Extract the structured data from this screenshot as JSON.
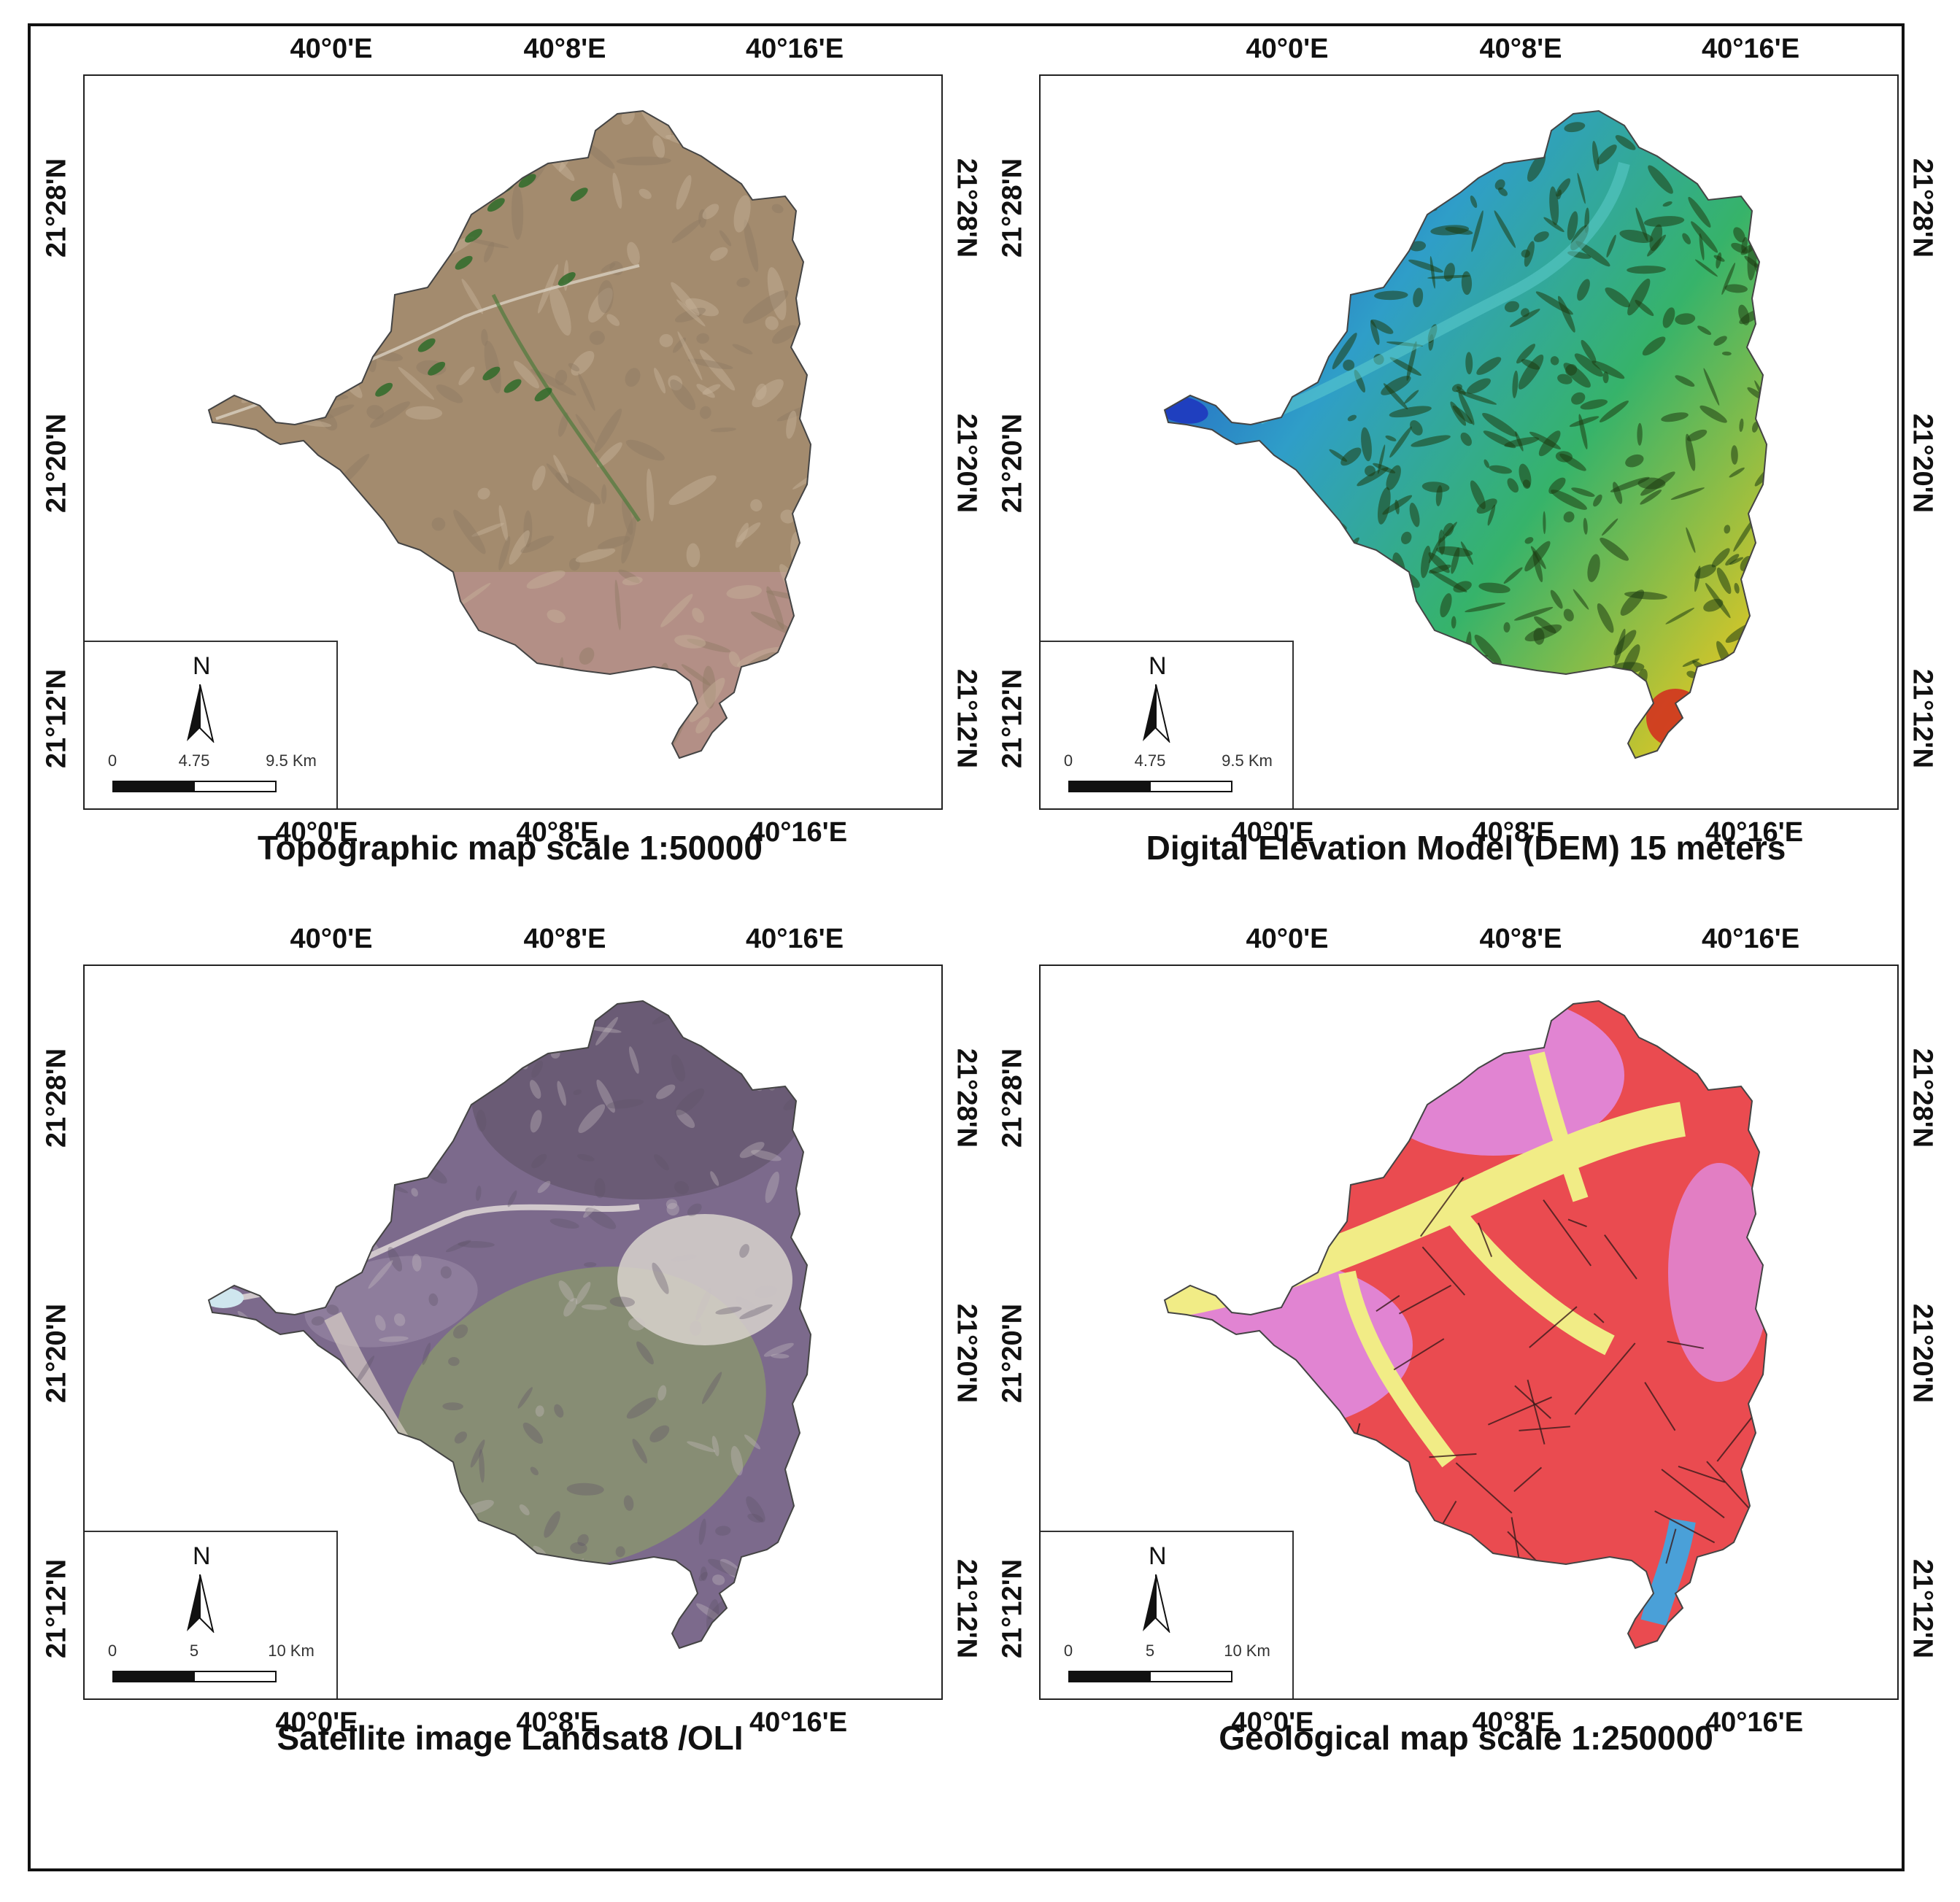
{
  "panels": [
    {
      "id": "topo",
      "caption": "Topographic map scale 1:50000",
      "lon_ticks": [
        "40°0'E",
        "40°8'E",
        "40°16'E"
      ],
      "lat_ticks": [
        "21°28'N",
        "21°20'N",
        "21°12'N"
      ],
      "north": "N",
      "scale": {
        "l0": "0",
        "l1": "4.75",
        "l2": "9.5 Km"
      },
      "colors": [
        "#a38b6e",
        "#b9a080",
        "#c7b49c",
        "#8e7a63",
        "#b58f88"
      ]
    },
    {
      "id": "dem",
      "caption": "Digital Elevation Model (DEM) 15 meters",
      "lon_ticks": [
        "40°0'E",
        "40°8'E",
        "40°16'E"
      ],
      "lat_ticks": [
        "21°28'N",
        "21°20'N",
        "21°12'N"
      ],
      "north": "N",
      "scale": {
        "l0": "0",
        "l1": "4.75",
        "l2": "9.5 Km"
      },
      "colors": [
        "#1f3fbf",
        "#2f9ec8",
        "#36b36a",
        "#1e3c12",
        "#c9c42d",
        "#d2331f"
      ]
    },
    {
      "id": "sat",
      "caption": "Satellite image Landsat8 /OLI",
      "lon_ticks": [
        "40°0'E",
        "40°8'E",
        "40°16'E"
      ],
      "lat_ticks": [
        "21°28'N",
        "21°20'N",
        "21°12'N"
      ],
      "north": "N",
      "scale": {
        "l0": "0",
        "l1": "5",
        "l2": "10 Km"
      },
      "colors": [
        "#7c6a8c",
        "#9b8aa6",
        "#c9c0c2",
        "#8b9a6c",
        "#5f5266",
        "#d8d2cc"
      ]
    },
    {
      "id": "geo",
      "caption": "Geological map scale 1:250000",
      "lon_ticks": [
        "40°0'E",
        "40°8'E",
        "40°16'E"
      ],
      "lat_ticks": [
        "21°28'N",
        "21°20'N",
        "21°12'N"
      ],
      "north": "N",
      "scale": {
        "l0": "0",
        "l1": "5",
        "l2": "10 Km"
      },
      "colors": [
        "#ea4b50",
        "#e08be0",
        "#f1ec86",
        "#4aa0d8",
        "#c28bd3"
      ]
    }
  ]
}
